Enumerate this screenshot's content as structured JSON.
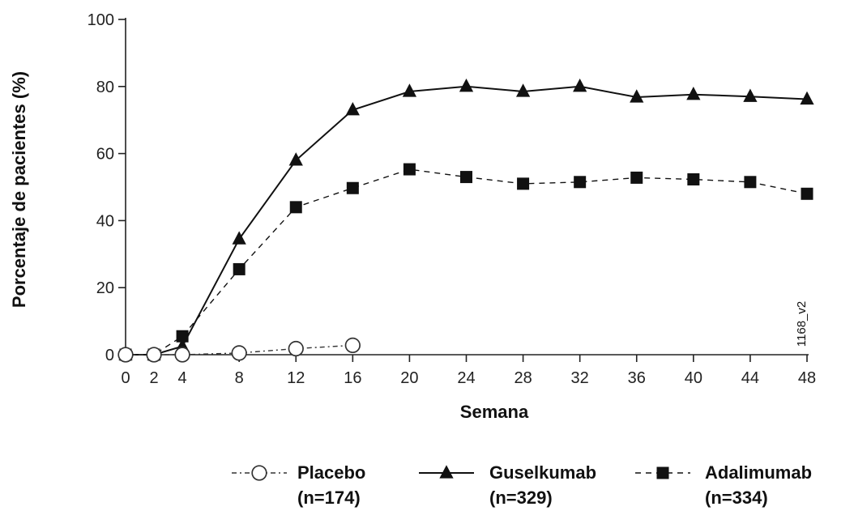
{
  "chart_data": {
    "type": "line",
    "title": "",
    "xlabel": "Semana",
    "ylabel": "Porcentaje de pacientes (%)",
    "xlim": [
      0,
      48
    ],
    "ylim": [
      0,
      100
    ],
    "x_ticks": [
      0,
      2,
      4,
      8,
      12,
      16,
      20,
      24,
      28,
      32,
      36,
      40,
      44,
      48
    ],
    "y_ticks": [
      0,
      20,
      40,
      60,
      80,
      100
    ],
    "grid": false,
    "legend_position": "bottom",
    "side_label": "1168_v2",
    "series": [
      {
        "name": "Placebo",
        "n_label": "(n=174)",
        "marker": "open-circle",
        "line_style": "dash-dot",
        "color": "#333333",
        "x": [
          0,
          2,
          4,
          8,
          12,
          16
        ],
        "y": [
          0,
          0,
          0,
          0.5,
          1.8,
          2.8
        ]
      },
      {
        "name": "Guselkumab",
        "n_label": "(n=329)",
        "marker": "filled-triangle",
        "line_style": "solid",
        "color": "#111111",
        "x": [
          0,
          2,
          4,
          8,
          12,
          16,
          20,
          24,
          28,
          32,
          36,
          40,
          44,
          48
        ],
        "y": [
          0,
          0,
          2.5,
          34.5,
          58,
          73,
          78.5,
          80,
          78.5,
          80,
          76.8,
          77.6,
          77,
          76.2
        ]
      },
      {
        "name": "Adalimumab",
        "n_label": "(n=334)",
        "marker": "filled-square",
        "line_style": "dashed",
        "color": "#111111",
        "x": [
          0,
          2,
          4,
          8,
          12,
          16,
          20,
          24,
          28,
          32,
          36,
          40,
          44,
          48
        ],
        "y": [
          0,
          0,
          5.5,
          25.5,
          44,
          49.7,
          55.3,
          53,
          51,
          51.5,
          52.8,
          52.3,
          51.5,
          48
        ]
      }
    ]
  }
}
